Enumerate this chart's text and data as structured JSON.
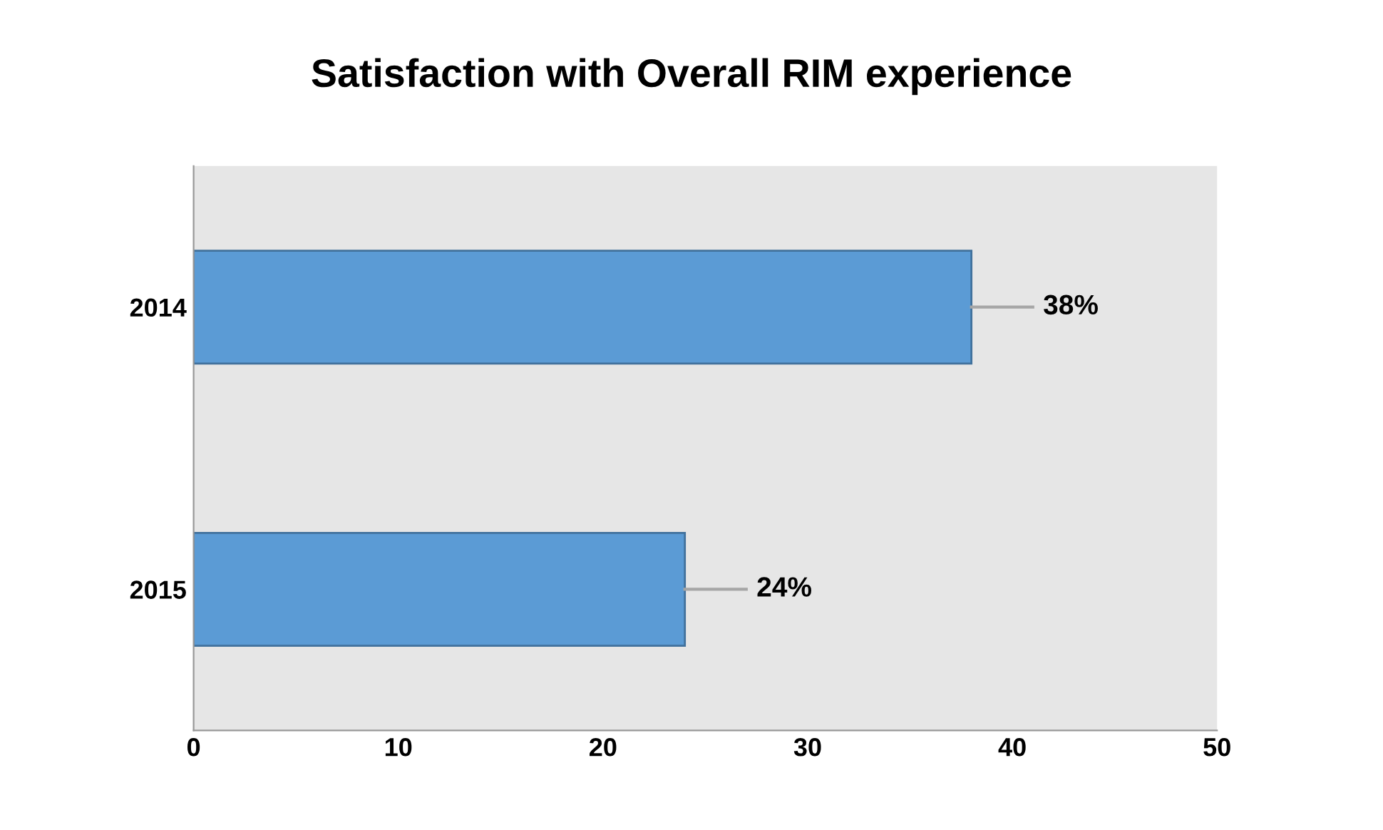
{
  "chart_data": {
    "type": "bar",
    "title": "Satisfaction with Overall RIM experience",
    "orientation": "horizontal",
    "categories": [
      "2014",
      "2015"
    ],
    "values": [
      38,
      24
    ],
    "value_labels": [
      "38%",
      "24%"
    ],
    "color": "#5b9bd5",
    "xlim": [
      0,
      50
    ],
    "xticks": [
      0,
      10,
      20,
      30,
      40,
      50
    ],
    "grid": false,
    "legend": false
  }
}
